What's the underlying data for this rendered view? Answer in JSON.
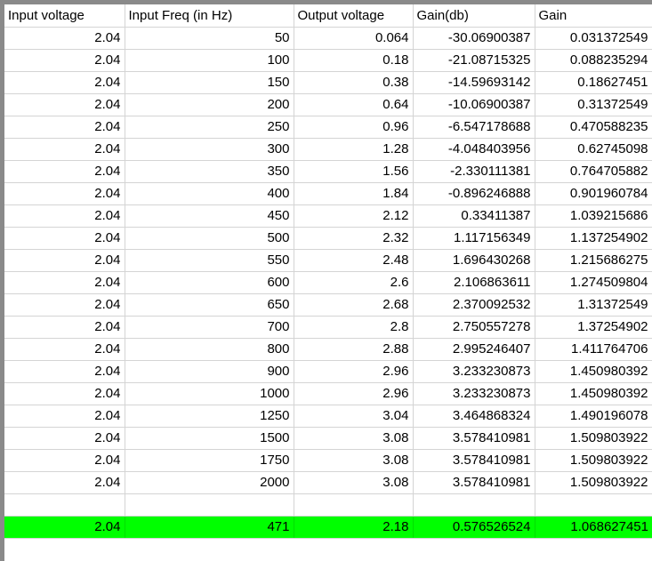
{
  "sheet": {
    "headers": [
      "Input voltage",
      "Input Freq (in Hz)",
      "Output voltage",
      "Gain(db)",
      "Gain"
    ],
    "rows": [
      [
        "2.04",
        "50",
        "0.064",
        "-30.06900387",
        "0.031372549"
      ],
      [
        "2.04",
        "100",
        "0.18",
        "-21.08715325",
        "0.088235294"
      ],
      [
        "2.04",
        "150",
        "0.38",
        "-14.59693142",
        "0.18627451"
      ],
      [
        "2.04",
        "200",
        "0.64",
        "-10.06900387",
        "0.31372549"
      ],
      [
        "2.04",
        "250",
        "0.96",
        "-6.547178688",
        "0.470588235"
      ],
      [
        "2.04",
        "300",
        "1.28",
        "-4.048403956",
        "0.62745098"
      ],
      [
        "2.04",
        "350",
        "1.56",
        "-2.330111381",
        "0.764705882"
      ],
      [
        "2.04",
        "400",
        "1.84",
        "-0.896246888",
        "0.901960784"
      ],
      [
        "2.04",
        "450",
        "2.12",
        "0.33411387",
        "1.039215686"
      ],
      [
        "2.04",
        "500",
        "2.32",
        "1.117156349",
        "1.137254902"
      ],
      [
        "2.04",
        "550",
        "2.48",
        "1.696430268",
        "1.215686275"
      ],
      [
        "2.04",
        "600",
        "2.6",
        "2.106863611",
        "1.274509804"
      ],
      [
        "2.04",
        "650",
        "2.68",
        "2.370092532",
        "1.31372549"
      ],
      [
        "2.04",
        "700",
        "2.8",
        "2.750557278",
        "1.37254902"
      ],
      [
        "2.04",
        "800",
        "2.88",
        "2.995246407",
        "1.411764706"
      ],
      [
        "2.04",
        "900",
        "2.96",
        "3.233230873",
        "1.450980392"
      ],
      [
        "2.04",
        "1000",
        "2.96",
        "3.233230873",
        "1.450980392"
      ],
      [
        "2.04",
        "1250",
        "3.04",
        "3.464868324",
        "1.490196078"
      ],
      [
        "2.04",
        "1500",
        "3.08",
        "3.578410981",
        "1.509803922"
      ],
      [
        "2.04",
        "1750",
        "3.08",
        "3.578410981",
        "1.509803922"
      ],
      [
        "2.04",
        "2000",
        "3.08",
        "3.578410981",
        "1.509803922"
      ]
    ],
    "highlight_row": [
      "2.04",
      "471",
      "2.18",
      "0.576526524",
      "1.068627451"
    ],
    "highlight_color": "#00ff00",
    "gridline_color": "#d4d4d4"
  }
}
